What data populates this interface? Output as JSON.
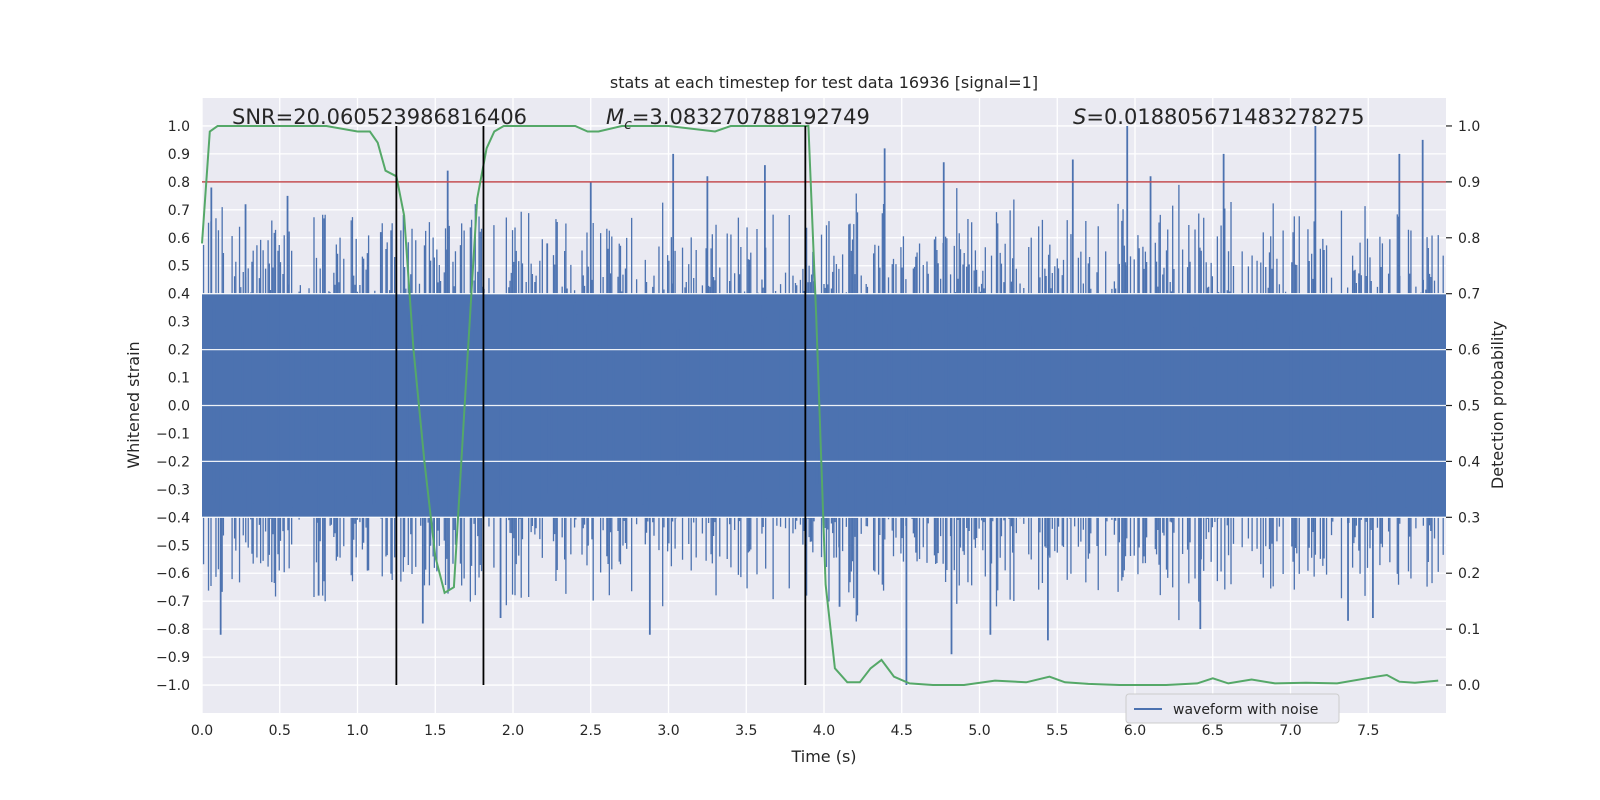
{
  "chart_data": {
    "type": "line",
    "title": "stats at each timestep for test data 16936 [signal=1]",
    "xlabel": "Time (s)",
    "ylabel": "Whitened strain",
    "ylabel_right": "Detection probability",
    "xlim": [
      0,
      8
    ],
    "ylim": [
      -1.1,
      1.1
    ],
    "ylim_right": [
      -0.05,
      1.05
    ],
    "x_ticks": [
      0.0,
      0.5,
      1.0,
      1.5,
      2.0,
      2.5,
      3.0,
      3.5,
      4.0,
      4.5,
      5.0,
      5.5,
      6.0,
      6.5,
      7.0,
      7.5
    ],
    "x_tick_labels": [
      "0.0",
      "0.5",
      "1.0",
      "1.5",
      "2.0",
      "2.5",
      "3.0",
      "3.5",
      "4.0",
      "4.5",
      "5.0",
      "5.5",
      "6.0",
      "6.5",
      "7.0",
      "7.5"
    ],
    "y_ticks": [
      1.0,
      0.9,
      0.8,
      0.7,
      0.6,
      0.5,
      0.4,
      0.3,
      0.2,
      0.1,
      0.0,
      -0.1,
      -0.2,
      -0.3,
      -0.4,
      -0.5,
      -0.6,
      -0.7,
      -0.8,
      -0.9,
      -1.0
    ],
    "y_tick_labels": [
      "1.0",
      "0.9",
      "0.8",
      "0.7",
      "0.6",
      "0.5",
      "0.4",
      "0.3",
      "0.2",
      "0.1",
      "0.0",
      "−0.1",
      "−0.2",
      "−0.3",
      "−0.4",
      "−0.5",
      "−0.6",
      "−0.7",
      "−0.8",
      "−0.9",
      "−1.0"
    ],
    "y_right_ticks": [
      1.0,
      0.9,
      0.8,
      0.7,
      0.6,
      0.5,
      0.4,
      0.3,
      0.2,
      0.1,
      0.0
    ],
    "y_right_tick_labels": [
      "1.0",
      "0.9",
      "0.8",
      "0.7",
      "0.6",
      "0.5",
      "0.4",
      "0.3",
      "0.2",
      "0.1",
      "0.0"
    ],
    "annotations": {
      "snr": "SNR=20.060523986816406",
      "mc_symbol": "M",
      "mc_sub": "c",
      "mc_value": "=3.083270788192749",
      "s_symbol": "S",
      "s_value": "=0.018805671483278275"
    },
    "vertical_lines_x": [
      1.25,
      1.81,
      3.88
    ],
    "threshold_right": 0.9,
    "legend": {
      "label": "waveform with noise",
      "placement": "lower-right"
    },
    "strain_series": {
      "name": "waveform with noise",
      "color": "#4c72b0",
      "envelope": 0.4,
      "peaks": [
        {
          "x": 0.06,
          "y": 0.78
        },
        {
          "x": 0.12,
          "y": -0.82
        },
        {
          "x": 0.28,
          "y": 0.72
        },
        {
          "x": 0.55,
          "y": 0.75
        },
        {
          "x": 0.75,
          "y": -0.68
        },
        {
          "x": 1.15,
          "y": 0.62
        },
        {
          "x": 1.42,
          "y": -0.78
        },
        {
          "x": 1.58,
          "y": 0.84
        },
        {
          "x": 1.92,
          "y": -0.76
        },
        {
          "x": 2.22,
          "y": 0.58
        },
        {
          "x": 2.5,
          "y": 0.8
        },
        {
          "x": 2.88,
          "y": -0.82
        },
        {
          "x": 3.03,
          "y": 0.9
        },
        {
          "x": 3.25,
          "y": 0.82
        },
        {
          "x": 3.62,
          "y": 0.86
        },
        {
          "x": 4.1,
          "y": -0.72
        },
        {
          "x": 4.39,
          "y": 0.92
        },
        {
          "x": 4.53,
          "y": -1.0
        },
        {
          "x": 4.77,
          "y": 0.87
        },
        {
          "x": 4.82,
          "y": -0.89
        },
        {
          "x": 5.07,
          "y": -0.82
        },
        {
          "x": 5.44,
          "y": -0.84
        },
        {
          "x": 5.6,
          "y": 0.88
        },
        {
          "x": 5.95,
          "y": 1.0
        },
        {
          "x": 6.1,
          "y": 0.82
        },
        {
          "x": 6.42,
          "y": -0.8
        },
        {
          "x": 6.57,
          "y": 0.9
        },
        {
          "x": 7.16,
          "y": 1.0
        },
        {
          "x": 7.37,
          "y": -0.77
        },
        {
          "x": 7.53,
          "y": -0.76
        },
        {
          "x": 7.7,
          "y": 0.9
        },
        {
          "x": 7.85,
          "y": 0.95
        }
      ]
    },
    "probability_series": {
      "name": "detection probability",
      "color": "#55a868",
      "x": [
        0.0,
        0.05,
        0.1,
        0.2,
        0.4,
        0.6,
        0.8,
        1.0,
        1.08,
        1.13,
        1.18,
        1.25,
        1.3,
        1.36,
        1.43,
        1.5,
        1.56,
        1.62,
        1.7,
        1.77,
        1.83,
        1.88,
        1.94,
        2.0,
        2.2,
        2.4,
        2.48,
        2.55,
        2.7,
        3.0,
        3.3,
        3.4,
        3.6,
        3.8,
        3.9,
        3.95,
        4.01,
        4.07,
        4.15,
        4.23,
        4.3,
        4.37,
        4.45,
        4.55,
        4.7,
        4.9,
        5.1,
        5.3,
        5.45,
        5.55,
        5.7,
        5.9,
        6.2,
        6.4,
        6.5,
        6.6,
        6.75,
        6.9,
        7.1,
        7.3,
        7.55,
        7.62,
        7.7,
        7.8,
        7.95
      ],
      "y": [
        0.79,
        0.99,
        1.0,
        1.0,
        1.0,
        1.0,
        1.0,
        0.99,
        0.99,
        0.97,
        0.92,
        0.91,
        0.84,
        0.6,
        0.4,
        0.23,
        0.165,
        0.175,
        0.55,
        0.87,
        0.96,
        0.99,
        1.0,
        1.0,
        1.0,
        1.0,
        0.99,
        0.99,
        1.0,
        1.0,
        0.99,
        1.0,
        1.0,
        1.0,
        1.0,
        0.66,
        0.18,
        0.03,
        0.005,
        0.005,
        0.03,
        0.045,
        0.015,
        0.003,
        0.0,
        0.0,
        0.008,
        0.005,
        0.015,
        0.005,
        0.002,
        0.0,
        0.0,
        0.003,
        0.012,
        0.003,
        0.01,
        0.003,
        0.004,
        0.003,
        0.015,
        0.018,
        0.006,
        0.004,
        0.008
      ]
    }
  }
}
